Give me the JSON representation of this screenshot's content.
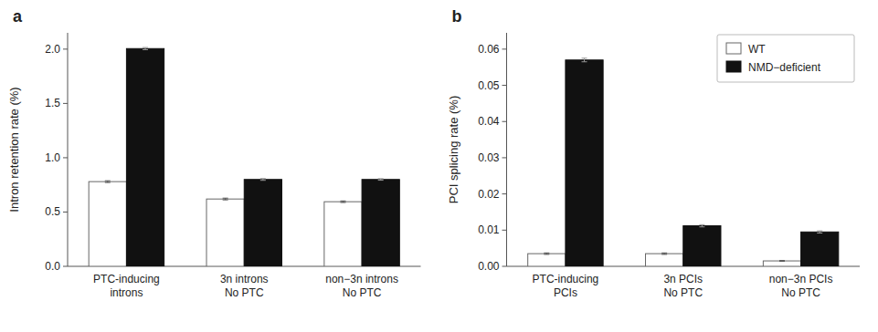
{
  "chart_data": [
    {
      "type": "bar",
      "title": "a",
      "ylabel": "Intron retention rate (%)",
      "categories": [
        "PTC-inducing\nintrons",
        "3n introns\nNo PTC",
        "non−3n introns\nNo PTC"
      ],
      "series": [
        {
          "color": "white",
          "values": [
            0.78,
            0.62,
            0.595
          ],
          "errors": [
            0.008,
            0.008,
            0.007
          ]
        },
        {
          "color": "#111111",
          "values": [
            2.005,
            0.8,
            0.8
          ],
          "errors": [
            0.01,
            0.008,
            0.007
          ]
        }
      ],
      "ylim": [
        0.0,
        2.15
      ],
      "yticks": [
        {
          "value": 0.0,
          "label": "0.0"
        },
        0.5,
        {
          "value": 1.0,
          "label": "1.0"
        },
        1.5,
        {
          "value": 2.0,
          "label": "2.0"
        }
      ],
      "grid": false
    },
    {
      "type": "bar",
      "title": "b",
      "ylabel": "PCI splicing rate (%)",
      "categories": [
        "PTC-inducing\nPCIs",
        "3n PCIs\nNo PTC",
        "non−3n PCIs\nNo PTC"
      ],
      "series": [
        {
          "name": "WT",
          "color": "white",
          "values": [
            0.0035,
            0.0035,
            0.0015
          ],
          "errors": [
            0.0002,
            0.0002,
            0.0001
          ]
        },
        {
          "name": "NMD−deficient",
          "color": "#111111",
          "values": [
            0.057,
            0.0112,
            0.0095
          ],
          "errors": [
            0.0005,
            0.0003,
            0.0003
          ]
        }
      ],
      "ylim": [
        0.0,
        0.0645
      ],
      "yticks": [
        {
          "value": 0.0,
          "label": "0.00"
        },
        0.01,
        0.02,
        0.03,
        0.04,
        0.05,
        0.06
      ],
      "grid": false,
      "legend": "upper right"
    }
  ]
}
